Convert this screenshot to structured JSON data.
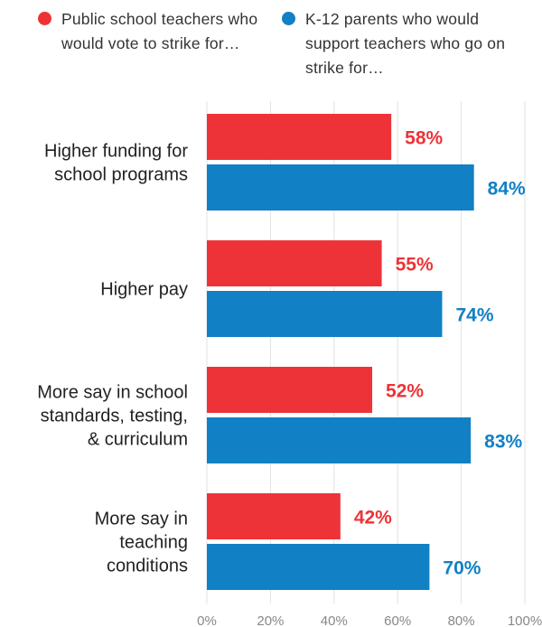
{
  "legend": {
    "series_a": "Public school teachers who would vote to strike for…",
    "series_b": "K-12 parents who would support teachers who go on strike for…"
  },
  "colors": {
    "series_a": "#ee3338",
    "series_b": "#1180c5",
    "grid": "#e2e2e2"
  },
  "chart_data": {
    "type": "bar",
    "orientation": "horizontal",
    "categories": [
      [
        "Higher funding for",
        "school programs"
      ],
      [
        "Higher pay"
      ],
      [
        "More say in school",
        "standards, testing,",
        "& curriculum"
      ],
      [
        "More say in",
        "teaching",
        "conditions"
      ]
    ],
    "series": [
      {
        "name": "Public school teachers who would vote to strike for…",
        "values": [
          58,
          55,
          52,
          42
        ],
        "labels": [
          "58%",
          "55%",
          "52%",
          "42%"
        ]
      },
      {
        "name": "K-12 parents who would support teachers who go on strike for…",
        "values": [
          84,
          74,
          83,
          70
        ],
        "labels": [
          "84%",
          "74%",
          "83%",
          "70%"
        ]
      }
    ],
    "xlim": [
      0,
      100
    ],
    "ticks": [
      0,
      20,
      40,
      60,
      80,
      100
    ],
    "tick_labels": [
      "0%",
      "20%",
      "40%",
      "60%",
      "80%",
      "100%"
    ],
    "grid": true,
    "legend_position": "top"
  }
}
